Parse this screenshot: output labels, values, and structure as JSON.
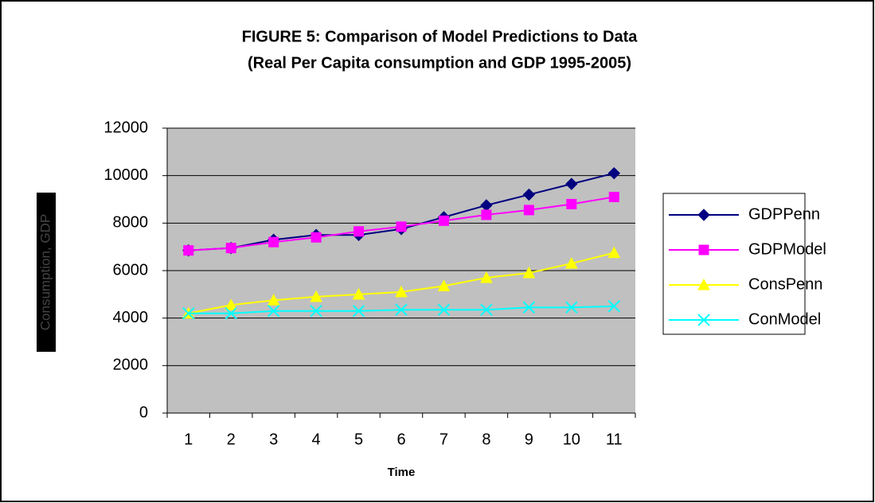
{
  "chart_data": {
    "type": "line",
    "title": "FIGURE 5: Comparison of Model Predictions to Data",
    "subtitle": "(Real Per Capita consumption and GDP 1995-2005)",
    "x_label": "Time",
    "y_label": "Consumption, GDP",
    "categories": [
      "1",
      "2",
      "3",
      "4",
      "5",
      "6",
      "7",
      "8",
      "9",
      "10",
      "11"
    ],
    "series": [
      {
        "name": "GDPPenn",
        "color": "#000080",
        "marker": "diamond",
        "values": [
          6850,
          6950,
          7300,
          7500,
          7500,
          7750,
          8250,
          8750,
          9200,
          9650,
          10100
        ]
      },
      {
        "name": "GDPModel",
        "color": "#ff00ff",
        "marker": "square",
        "values": [
          6850,
          6950,
          7200,
          7400,
          7650,
          7850,
          8100,
          8350,
          8550,
          8800,
          9100
        ]
      },
      {
        "name": "ConsPenn",
        "color": "#ffff00",
        "marker": "triangle",
        "values": [
          4200,
          4550,
          4750,
          4900,
          5000,
          5100,
          5350,
          5700,
          5900,
          6300,
          6750
        ]
      },
      {
        "name": "ConModel",
        "color": "#00ffff",
        "marker": "x",
        "values": [
          4200,
          4200,
          4300,
          4300,
          4300,
          4350,
          4350,
          4350,
          4450,
          4450,
          4500
        ]
      }
    ],
    "ylim": [
      0,
      12000
    ],
    "yticks": [
      0,
      2000,
      4000,
      6000,
      8000,
      10000,
      12000
    ],
    "grid": true,
    "plot_background": "#c0c0c0",
    "legend": "right"
  }
}
